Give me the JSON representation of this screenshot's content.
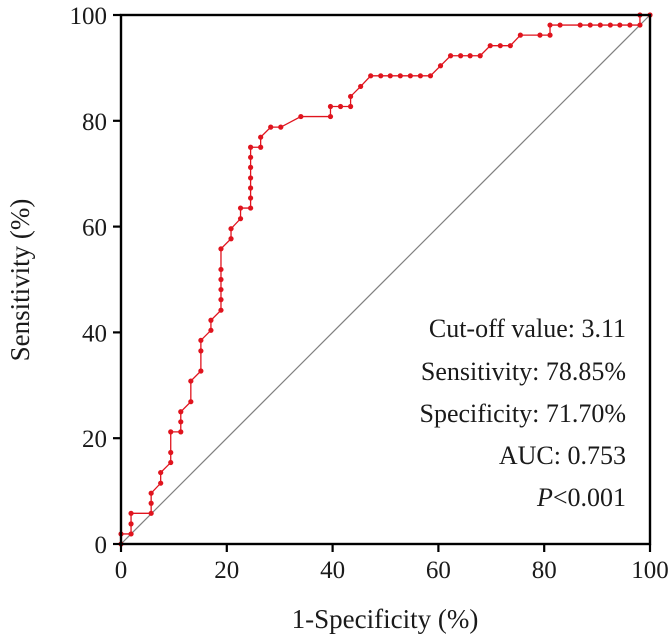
{
  "chart_data": {
    "type": "line",
    "xlabel": "1-Specificity (%)",
    "ylabel": "Sensitivity (%)",
    "xlim": [
      0,
      100
    ],
    "ylim": [
      0,
      100
    ],
    "x_ticks": [
      0,
      20,
      40,
      60,
      80,
      100
    ],
    "y_ticks": [
      0,
      20,
      40,
      60,
      80,
      100
    ],
    "grid": false,
    "reference_line": {
      "from": [
        0,
        0
      ],
      "to": [
        100,
        100
      ],
      "color": "#808080"
    },
    "series": [
      {
        "color": "#e0141e",
        "x": [
          0,
          0,
          1.9,
          1.9,
          1.9,
          5.7,
          5.7,
          5.7,
          7.5,
          7.5,
          9.4,
          9.4,
          9.4,
          11.3,
          11.3,
          11.3,
          13.2,
          13.2,
          15.1,
          15.1,
          15.1,
          17.0,
          17.0,
          18.9,
          18.9,
          18.9,
          18.9,
          18.9,
          18.9,
          20.8,
          20.8,
          22.6,
          22.6,
          24.5,
          24.5,
          24.5,
          24.5,
          24.5,
          24.5,
          24.5,
          26.4,
          26.4,
          28.3,
          30.2,
          34.0,
          39.6,
          39.6,
          41.5,
          43.4,
          43.4,
          45.3,
          47.2,
          49.1,
          50.9,
          52.8,
          54.7,
          56.6,
          58.5,
          60.4,
          62.3,
          64.2,
          66.0,
          67.9,
          69.8,
          71.7,
          73.6,
          75.5,
          79.2,
          81.1,
          81.1,
          83.0,
          86.8,
          88.7,
          90.6,
          92.5,
          94.3,
          96.2,
          98.1,
          98.1,
          100
        ],
        "y": [
          0,
          1.9,
          1.9,
          3.8,
          5.8,
          5.8,
          7.7,
          9.6,
          11.5,
          13.5,
          15.4,
          17.3,
          21.2,
          21.2,
          23.1,
          25.0,
          26.9,
          30.8,
          32.7,
          36.5,
          38.5,
          40.4,
          42.3,
          44.2,
          46.2,
          48.1,
          50.0,
          51.9,
          55.8,
          57.7,
          59.6,
          61.5,
          63.5,
          63.5,
          65.4,
          67.3,
          69.2,
          71.2,
          73.1,
          75.0,
          75.0,
          76.9,
          78.8,
          78.8,
          80.8,
          80.8,
          82.7,
          82.7,
          82.7,
          84.6,
          86.5,
          88.5,
          88.5,
          88.5,
          88.5,
          88.5,
          88.5,
          88.5,
          90.4,
          92.3,
          92.3,
          92.3,
          92.3,
          94.2,
          94.2,
          94.2,
          96.2,
          96.2,
          96.2,
          98.1,
          98.1,
          98.1,
          98.1,
          98.1,
          98.1,
          98.1,
          98.1,
          98.1,
          100,
          100
        ]
      }
    ],
    "annotations": [
      {
        "label": "Cut-off value: 3.11"
      },
      {
        "label": "Sensitivity: 78.85%"
      },
      {
        "label": "Specificity: 71.70%"
      },
      {
        "label": "AUC: 0.753"
      },
      {
        "label_italic": "P",
        "label": "<0.001"
      }
    ]
  }
}
